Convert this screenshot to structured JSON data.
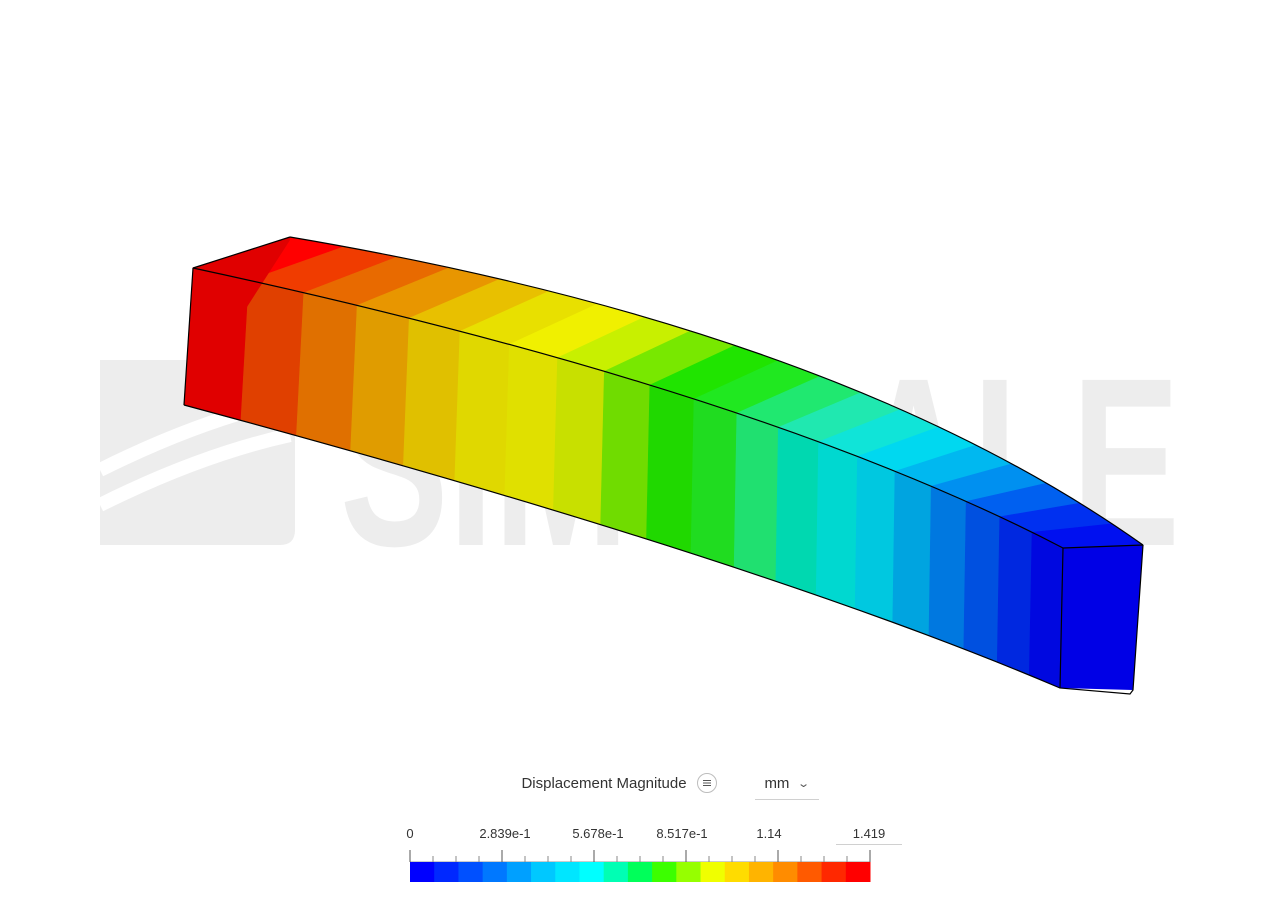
{
  "legend": {
    "title": "Displacement Magnitude",
    "menu_icon": "list-icon",
    "unit": "mm",
    "unit_chevron_icon": "chevron-down-icon",
    "tick_labels": [
      "0",
      "2.839e-1",
      "5.678e-1",
      "8.517e-1",
      "1.14",
      "1.419"
    ],
    "min": 0,
    "max": 1.419,
    "colors": [
      "#0000ff",
      "#0028ff",
      "#0050ff",
      "#0078ff",
      "#00a0ff",
      "#00c8ff",
      "#00e6ff",
      "#00ffff",
      "#00ffb4",
      "#00ff5a",
      "#3cff00",
      "#96ff00",
      "#f0ff00",
      "#ffdc00",
      "#ffb400",
      "#ff8c00",
      "#ff5a00",
      "#ff2800",
      "#ff0000"
    ]
  },
  "watermark": {
    "text": "SIMSCALE",
    "color": "#ededed"
  },
  "model": {
    "bands": 20,
    "edge_color": "#000000",
    "top_colors": [
      "#ff0000",
      "#f03c00",
      "#e86a00",
      "#e89600",
      "#e8c000",
      "#e8e000",
      "#f0f000",
      "#c8f000",
      "#78e800",
      "#20e400",
      "#20e820",
      "#20e870",
      "#20e8b0",
      "#10e4d8",
      "#00d8f0",
      "#00b8f0",
      "#0090f0",
      "#0060f0",
      "#0030f0",
      "#0010f0"
    ],
    "side_colors": [
      "#e00000",
      "#e04000",
      "#e07000",
      "#e09c00",
      "#e0c000",
      "#e0d800",
      "#e0e000",
      "#c8e000",
      "#70dc00",
      "#20d800",
      "#20dc20",
      "#20e070",
      "#00d8b0",
      "#00d8d0",
      "#00c8e0",
      "#00a4e0",
      "#0078e0",
      "#0050e0",
      "#0028e0",
      "#0008e0"
    ],
    "end_face_color": "#0000e6"
  }
}
